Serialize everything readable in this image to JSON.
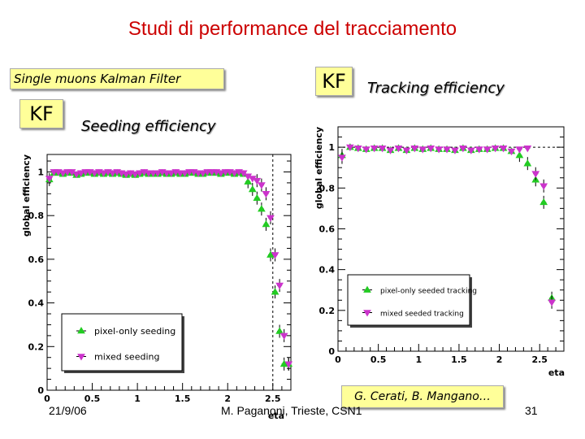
{
  "slide": {
    "title": "Studi di performance del tracciamento",
    "label_left": "Single muons Kalman Filter",
    "kf_left": "KF",
    "kf_right": "KF",
    "seeding_caption": "Seeding efficiency",
    "tracking_caption": "Tracking efficiency",
    "credits": "G. Cerati, B. Mangano…",
    "date": "21/9/06",
    "author": "M. Paganoni, Trieste, CSN1",
    "page": "31"
  },
  "chart_data": [
    {
      "type": "scatter",
      "title": "",
      "xlabel": "eta",
      "ylabel": "global efficiency",
      "xlim": [
        0,
        2.7
      ],
      "ylim": [
        0,
        1.08
      ],
      "xticks": [
        "0",
        "0.5",
        "1",
        "1.5",
        "2",
        "2.5"
      ],
      "yticks": [
        "0",
        "0.2",
        "0.4",
        "0.6",
        "0.8",
        "1"
      ],
      "legend_position": "bottom-left",
      "series": [
        {
          "name": "pixel-only seeding",
          "marker": "triangle-up",
          "color": "#22cc22",
          "x": [
            0.025,
            0.075,
            0.125,
            0.175,
            0.225,
            0.275,
            0.325,
            0.375,
            0.425,
            0.475,
            0.525,
            0.575,
            0.625,
            0.675,
            0.725,
            0.775,
            0.825,
            0.875,
            0.925,
            0.975,
            1.025,
            1.075,
            1.125,
            1.175,
            1.225,
            1.275,
            1.325,
            1.375,
            1.425,
            1.475,
            1.525,
            1.575,
            1.625,
            1.675,
            1.725,
            1.775,
            1.825,
            1.875,
            1.925,
            1.975,
            2.025,
            2.075,
            2.125,
            2.175,
            2.225,
            2.275,
            2.325,
            2.375,
            2.425,
            2.475,
            2.525,
            2.575,
            2.625,
            2.675
          ],
          "y": [
            0.965,
            0.995,
            0.995,
            0.99,
            0.995,
            0.995,
            0.985,
            0.99,
            0.995,
            0.995,
            0.99,
            0.995,
            0.99,
            0.995,
            0.99,
            0.995,
            0.99,
            0.985,
            0.99,
            0.985,
            0.99,
            0.995,
            0.99,
            0.99,
            0.99,
            0.995,
            0.99,
            0.99,
            0.995,
            0.99,
            0.99,
            0.995,
            0.995,
            0.99,
            0.99,
            0.995,
            0.995,
            0.995,
            0.99,
            0.995,
            0.995,
            0.99,
            0.995,
            0.99,
            0.955,
            0.92,
            0.88,
            0.83,
            0.76,
            0.62,
            0.45,
            0.27,
            0.12,
            0.12
          ]
        },
        {
          "name": "mixed seeding",
          "marker": "triangle-down",
          "color": "#cc33cc",
          "x": [
            0.025,
            0.075,
            0.125,
            0.175,
            0.225,
            0.275,
            0.325,
            0.375,
            0.425,
            0.475,
            0.525,
            0.575,
            0.625,
            0.675,
            0.725,
            0.775,
            0.825,
            0.875,
            0.925,
            0.975,
            1.025,
            1.075,
            1.125,
            1.175,
            1.225,
            1.275,
            1.325,
            1.375,
            1.425,
            1.475,
            1.525,
            1.575,
            1.625,
            1.675,
            1.725,
            1.775,
            1.825,
            1.875,
            1.925,
            1.975,
            2.025,
            2.075,
            2.125,
            2.175,
            2.225,
            2.275,
            2.325,
            2.375,
            2.425,
            2.475,
            2.525,
            2.575,
            2.625,
            2.675
          ],
          "y": [
            0.97,
            1.0,
            1.0,
            0.995,
            1.0,
            1.0,
            0.99,
            0.995,
            1.0,
            1.0,
            0.995,
            1.0,
            0.995,
            1.0,
            0.995,
            1.0,
            0.995,
            0.99,
            0.995,
            0.99,
            0.995,
            1.0,
            0.995,
            0.995,
            0.995,
            1.0,
            0.995,
            0.995,
            1.0,
            0.995,
            0.995,
            1.0,
            1.0,
            0.995,
            0.995,
            1.0,
            1.0,
            1.0,
            0.995,
            1.0,
            1.0,
            0.995,
            1.0,
            0.995,
            0.98,
            0.97,
            0.96,
            0.94,
            0.9,
            0.79,
            0.62,
            0.48,
            0.25,
            0.12
          ]
        }
      ]
    },
    {
      "type": "scatter",
      "title": "",
      "xlabel": "eta",
      "ylabel": "global efficiency",
      "xlim": [
        0,
        2.8
      ],
      "ylim": [
        0,
        1.1
      ],
      "xticks": [
        "0",
        "0.5",
        "1",
        "1.5",
        "2",
        "2.5"
      ],
      "yticks": [
        "0",
        "0.2",
        "0.4",
        "0.6",
        "0.8",
        "1"
      ],
      "legend_position": "bottom-left",
      "series": [
        {
          "name": "pixel-only seeded tracking",
          "marker": "triangle-up",
          "color": "#22cc22",
          "x": [
            0.05,
            0.15,
            0.25,
            0.35,
            0.45,
            0.55,
            0.65,
            0.75,
            0.85,
            0.95,
            1.05,
            1.15,
            1.25,
            1.35,
            1.45,
            1.55,
            1.65,
            1.75,
            1.85,
            1.95,
            2.05,
            2.15,
            2.25,
            2.35,
            2.45,
            2.55,
            2.65
          ],
          "y": [
            0.96,
            1.0,
            0.995,
            0.99,
            0.995,
            0.995,
            0.985,
            0.995,
            0.985,
            0.995,
            0.99,
            0.995,
            0.99,
            0.99,
            0.985,
            0.995,
            0.985,
            0.99,
            0.99,
            0.995,
            0.995,
            0.98,
            0.96,
            0.92,
            0.84,
            0.73,
            0.26
          ]
        },
        {
          "name": "mixed seeded tracking",
          "marker": "triangle-down",
          "color": "#cc33cc",
          "x": [
            0.05,
            0.15,
            0.25,
            0.35,
            0.45,
            0.55,
            0.65,
            0.75,
            0.85,
            0.95,
            1.05,
            1.15,
            1.25,
            1.35,
            1.45,
            1.55,
            1.65,
            1.75,
            1.85,
            1.95,
            2.05,
            2.15,
            2.25,
            2.35,
            2.45,
            2.55,
            2.65
          ],
          "y": [
            0.95,
            1.0,
            0.995,
            0.99,
            0.995,
            0.995,
            0.985,
            0.995,
            0.985,
            0.995,
            0.99,
            0.995,
            0.99,
            0.99,
            0.985,
            0.995,
            0.985,
            0.99,
            0.99,
            0.995,
            0.995,
            0.98,
            0.99,
            0.995,
            0.87,
            0.81,
            0.24
          ]
        }
      ]
    }
  ]
}
